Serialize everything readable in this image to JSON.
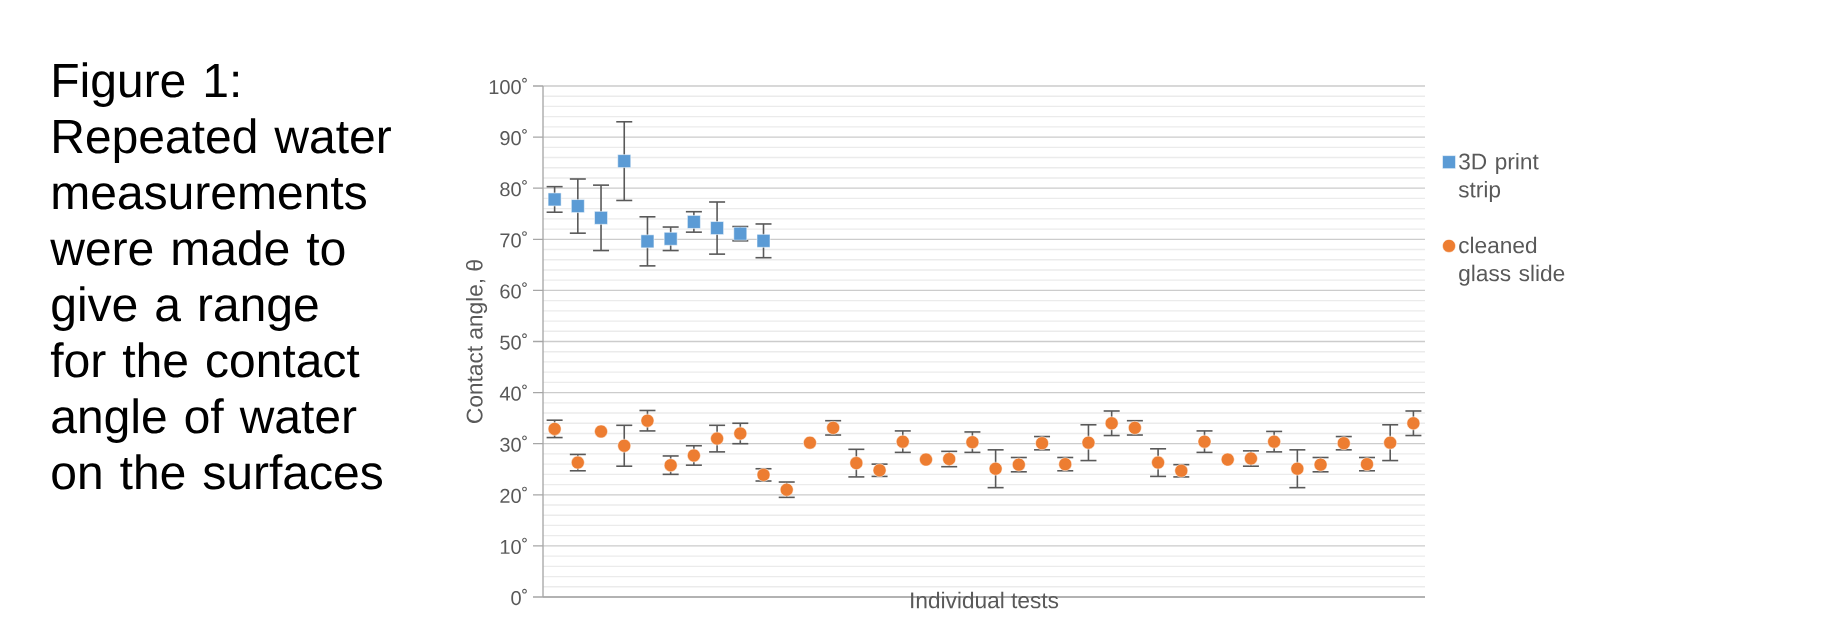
{
  "chart_data": {
    "type": "scatter",
    "title": "Figure 1: Repeated water measurements were made to give a range for the contact angle of water on the surfaces",
    "xlabel": "Individual tests",
    "ylabel": "Contact angle, θ",
    "categories": [
      null,
      null,
      null,
      null,
      null,
      null,
      null,
      null,
      null,
      null,
      null,
      null,
      null,
      null,
      null,
      null,
      null,
      null,
      null,
      null,
      null,
      null,
      null,
      null,
      null,
      null,
      null,
      null,
      null,
      null,
      null,
      null,
      null,
      null,
      null,
      null,
      null,
      null
    ],
    "series": [
      {
        "name": "3D print strip",
        "color": "#5b9bd5",
        "marker": "square",
        "values": [
          77.8,
          76.5,
          74.2,
          85.3,
          69.6,
          70.1,
          73.4,
          72.2,
          71.1,
          69.7,
          null,
          null,
          null,
          null,
          null,
          null,
          null,
          null,
          null,
          null,
          null,
          null,
          null,
          null,
          null,
          null,
          null,
          null,
          null,
          null,
          null,
          null,
          null,
          null,
          null,
          null,
          null,
          null
        ],
        "errors": [
          2.5,
          5.3,
          6.4,
          7.7,
          4.8,
          2.3,
          2,
          5.1,
          1.4,
          3.3,
          null,
          null,
          null,
          null,
          null,
          null,
          null,
          null,
          null,
          null,
          null,
          null,
          null,
          null,
          null,
          null,
          null,
          null,
          null,
          null,
          null,
          null,
          null,
          null,
          null,
          null,
          null,
          null
        ]
      },
      {
        "name": "cleaned glass slide",
        "color": "#ed7d31",
        "marker": "circle",
        "values": [
          32.9,
          26.3,
          32.4,
          29.6,
          34.5,
          25.8,
          27.7,
          31.0,
          32.0,
          23.9,
          21.0,
          30.2,
          33.1,
          26.2,
          24.8,
          30.4,
          26.9,
          27.0,
          30.3,
          25.1,
          25.9,
          30.1,
          26.0,
          30.2,
          34.0,
          33.1,
          26.3,
          24.7,
          30.4,
          26.9,
          27.1,
          30.4,
          25.1,
          25.9,
          30.1,
          26.0,
          30.2,
          34.0
        ],
        "errors": [
          1.7,
          1.6,
          null,
          4,
          2,
          1.8,
          1.9,
          2.6,
          2,
          1.2,
          1.5,
          null,
          1.4,
          2.7,
          1.2,
          2.1,
          null,
          1.5,
          2,
          3.7,
          1.4,
          1.3,
          1.3,
          3.5,
          2.4,
          1.4,
          2.7,
          1.2,
          2.1,
          null,
          1.5,
          2,
          3.7,
          1.4,
          1.3,
          1.3,
          3.5,
          2.4
        ]
      }
    ],
    "ylim": [
      0,
      100
    ],
    "yticks": [
      {
        "value": 0,
        "label": "0˚"
      },
      {
        "value": 10,
        "label": "10˚"
      },
      {
        "value": 20,
        "label": "20˚"
      },
      {
        "value": 30,
        "label": "30˚"
      },
      {
        "value": 40,
        "label": "40˚"
      },
      {
        "value": 50,
        "label": "50˚"
      },
      {
        "value": 60,
        "label": "60˚"
      },
      {
        "value": 70,
        "label": "70˚"
      },
      {
        "value": 80,
        "label": "80˚"
      },
      {
        "value": 90,
        "label": "90˚"
      },
      {
        "value": 100,
        "label": "100˚"
      }
    ],
    "grid": "y",
    "legend": "right"
  }
}
